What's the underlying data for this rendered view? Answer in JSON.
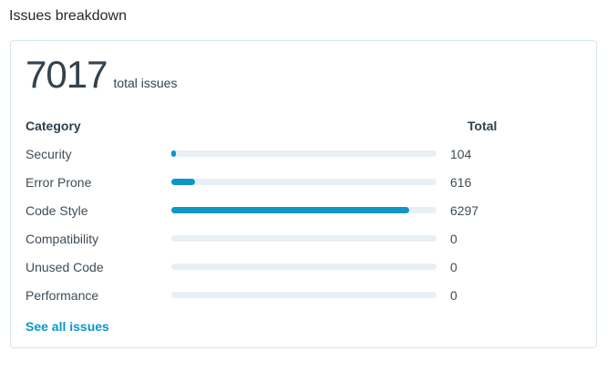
{
  "page": {
    "title": "Issues breakdown"
  },
  "card": {
    "total_value": "7017",
    "total_label": "total issues",
    "table": {
      "category_header": "Category",
      "total_header": "Total",
      "rows": [
        {
          "label": "Security",
          "total": "104",
          "percent": 1.48
        },
        {
          "label": "Error Prone",
          "total": "616",
          "percent": 8.78
        },
        {
          "label": "Code Style",
          "total": "6297",
          "percent": 89.74
        },
        {
          "label": "Compatibility",
          "total": "0",
          "percent": 0
        },
        {
          "label": "Unused Code",
          "total": "0",
          "percent": 0
        },
        {
          "label": "Performance",
          "total": "0",
          "percent": 0
        }
      ]
    },
    "link_label": "See all issues"
  },
  "colors": {
    "bar_fill": "#0e96c5",
    "bar_track": "#e8f0f5",
    "link": "#0897cb",
    "card_border": "#d6e5ee",
    "heading_text": "#24292e",
    "number_text": "#32424e"
  },
  "chart_data": {
    "type": "bar",
    "orientation": "horizontal",
    "title": "Issues breakdown",
    "categories": [
      "Security",
      "Error Prone",
      "Code Style",
      "Compatibility",
      "Unused Code",
      "Performance"
    ],
    "values": [
      104,
      616,
      6297,
      0,
      0,
      0
    ],
    "total": 7017,
    "xlabel": "",
    "ylabel": "",
    "xlim": [
      0,
      7017
    ],
    "legend": false,
    "grid": false
  }
}
